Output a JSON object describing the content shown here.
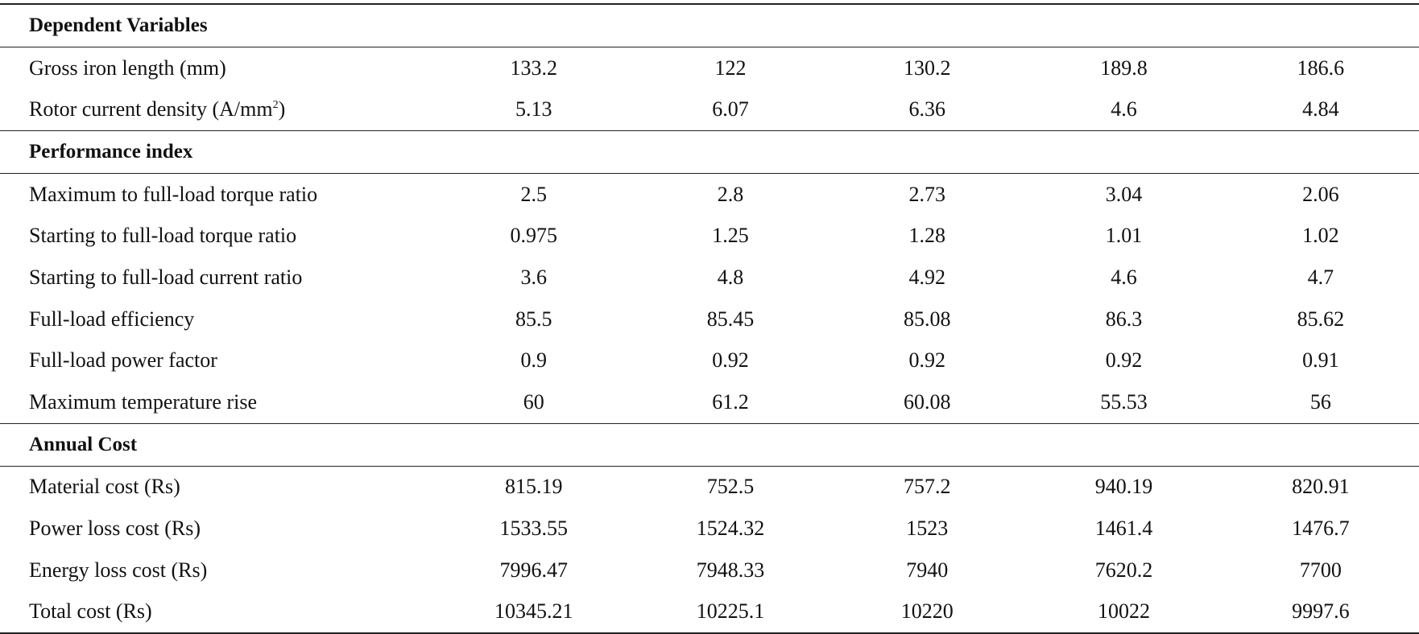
{
  "sections": [
    {
      "title": "Dependent Variables",
      "rows": [
        {
          "label": "Gross iron length (mm)",
          "values": [
            "133.2",
            "122",
            "130.2",
            "189.8",
            "186.6"
          ]
        },
        {
          "label_pre": "Rotor current density (A/mm",
          "label_sup": "2",
          "label_post": ")",
          "values": [
            "5.13",
            "6.07",
            "6.36",
            "4.6",
            "4.84"
          ]
        }
      ]
    },
    {
      "title": "Performance index",
      "rows": [
        {
          "label": "Maximum to full-load torque ratio",
          "values": [
            "2.5",
            "2.8",
            "2.73",
            "3.04",
            "2.06"
          ]
        },
        {
          "label": "Starting to full-load torque ratio",
          "values": [
            "0.975",
            "1.25",
            "1.28",
            "1.01",
            "1.02"
          ]
        },
        {
          "label": "Starting to full-load current ratio",
          "values": [
            "3.6",
            "4.8",
            "4.92",
            "4.6",
            "4.7"
          ]
        },
        {
          "label": "Full-load efficiency",
          "values": [
            "85.5",
            "85.45",
            "85.08",
            "86.3",
            "85.62"
          ]
        },
        {
          "label": "Full-load power factor",
          "values": [
            "0.9",
            "0.92",
            "0.92",
            "0.92",
            "0.91"
          ]
        },
        {
          "label": "Maximum temperature rise",
          "values": [
            "60",
            "61.2",
            "60.08",
            "55.53",
            "56"
          ]
        }
      ]
    },
    {
      "title": "Annual Cost",
      "rows": [
        {
          "label": "Material cost (Rs)",
          "values": [
            "815.19",
            "752.5",
            "757.2",
            "940.19",
            "820.91"
          ]
        },
        {
          "label": "Power loss cost (Rs)",
          "values": [
            "1533.55",
            "1524.32",
            "1523",
            "1461.4",
            "1476.7"
          ]
        },
        {
          "label": "Energy loss cost (Rs)",
          "values": [
            "7996.47",
            "7948.33",
            "7940",
            "7620.2",
            "7700"
          ]
        },
        {
          "label": "Total cost (Rs)",
          "values": [
            "10345.21",
            "10225.1",
            "10220",
            "10022",
            "9997.6"
          ]
        }
      ]
    }
  ]
}
